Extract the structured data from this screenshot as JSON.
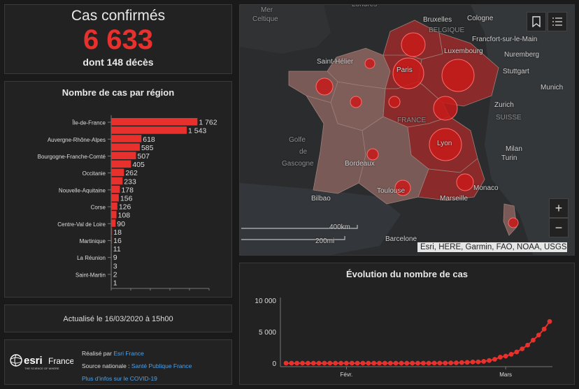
{
  "confirmed": {
    "title": "Cas confirmés",
    "value": "6 633",
    "deaths": "dont 148 décès"
  },
  "region_chart": {
    "title": "Nombre de cas par région",
    "chart_data": {
      "type": "bar",
      "orientation": "horizontal",
      "bars": [
        {
          "label": "Île-de-France",
          "value": 1762,
          "value_text": "1 762"
        },
        {
          "label": "",
          "value": 1543,
          "value_text": "1 543"
        },
        {
          "label": "Auvergne-Rhône-Alpes",
          "value": 618,
          "value_text": "618"
        },
        {
          "label": "",
          "value": 585,
          "value_text": "585"
        },
        {
          "label": "Bourgogne-Franche-Comté",
          "value": 507,
          "value_text": "507"
        },
        {
          "label": "",
          "value": 405,
          "value_text": "405"
        },
        {
          "label": "Occitanie",
          "value": 262,
          "value_text": "262"
        },
        {
          "label": "",
          "value": 233,
          "value_text": "233"
        },
        {
          "label": "Nouvelle-Aquitaine",
          "value": 178,
          "value_text": "178"
        },
        {
          "label": "",
          "value": 156,
          "value_text": "156"
        },
        {
          "label": "Corse",
          "value": 126,
          "value_text": "126"
        },
        {
          "label": "",
          "value": 108,
          "value_text": "108"
        },
        {
          "label": "Centre-Val de Loire",
          "value": 90,
          "value_text": "90"
        },
        {
          "label": "",
          "value": 18,
          "value_text": "18"
        },
        {
          "label": "Martinique",
          "value": 16,
          "value_text": "16"
        },
        {
          "label": "",
          "value": 11,
          "value_text": "11"
        },
        {
          "label": "La Réunion",
          "value": 9,
          "value_text": "9"
        },
        {
          "label": "",
          "value": 3,
          "value_text": "3"
        },
        {
          "label": "Saint-Martin",
          "value": 2,
          "value_text": "2"
        },
        {
          "label": "",
          "value": 1,
          "value_text": "1"
        }
      ],
      "xlim": [
        0,
        2000
      ],
      "color": "#e8302c"
    }
  },
  "update": {
    "text": "Actualisé le 16/03/2020 à 15h00"
  },
  "credit": {
    "logo_text": "esri",
    "logo_sub": "France",
    "logo_tagline": "THE SCIENCE OF WHERE",
    "made_by_prefix": "Réalisé par ",
    "made_by_link": "Esri France",
    "source_prefix": "Source nationale : ",
    "source_link": "Santé Publique France",
    "info_link": "Plus d'infos sur le COVID-19"
  },
  "map": {
    "labels": [
      {
        "text": "Mer",
        "dim": true
      },
      {
        "text": "Celtique",
        "dim": true
      },
      {
        "text": "Londres",
        "dim": true
      },
      {
        "text": "Bruxelles"
      },
      {
        "text": "Cologne"
      },
      {
        "text": "BELGIQUE",
        "dim": true
      },
      {
        "text": "Francfort-sur-le-Main"
      },
      {
        "text": "Luxembourg"
      },
      {
        "text": "Nuremberg"
      },
      {
        "text": "Saint-Hélier"
      },
      {
        "text": "Paris"
      },
      {
        "text": "Stuttgart"
      },
      {
        "text": "Munich"
      },
      {
        "text": "Zurich"
      },
      {
        "text": "SUISSE",
        "dim": true
      },
      {
        "text": "FRANCE",
        "dim": true
      },
      {
        "text": "Golfe",
        "dim": true
      },
      {
        "text": "de",
        "dim": true
      },
      {
        "text": "Gascogne",
        "dim": true
      },
      {
        "text": "Lyon"
      },
      {
        "text": "Milan"
      },
      {
        "text": "Turin"
      },
      {
        "text": "Bordeaux"
      },
      {
        "text": "Toulouse"
      },
      {
        "text": "Monaco"
      },
      {
        "text": "Marseille"
      },
      {
        "text": "Bilbao"
      },
      {
        "text": "Barcelone"
      }
    ],
    "scale_km": "400km",
    "scale_mi": "200mi",
    "attribution": "Esri, HERE, Garmin, FAO, NOAA, USGS",
    "zoom_in": "+",
    "zoom_out": "−",
    "colors": {
      "land": "#7a5a57",
      "hot": "#8b2a2a",
      "bubble": "#c81a1a"
    }
  },
  "trend": {
    "title": "Évolution du nombre de cas",
    "chart_data": {
      "type": "line",
      "yticks": [
        "0",
        "5 000",
        "10 000"
      ],
      "ylim": [
        0,
        10000
      ],
      "xticks": [
        {
          "label": "Févr.",
          "index": 11
        },
        {
          "label": "Mars",
          "index": 40
        }
      ],
      "values": [
        0,
        0,
        0,
        0,
        0,
        0,
        0,
        0,
        0,
        0,
        0,
        0,
        0,
        0,
        0,
        0,
        0,
        0,
        0,
        0,
        0,
        0,
        0,
        0,
        0,
        0,
        0,
        12,
        14,
        18,
        38,
        57,
        100,
        130,
        191,
        212,
        285,
        423,
        613,
        949,
        1126,
        1412,
        1784,
        2281,
        2876,
        3661,
        4469,
        5423,
        6633
      ],
      "color": "#e8302c"
    }
  }
}
